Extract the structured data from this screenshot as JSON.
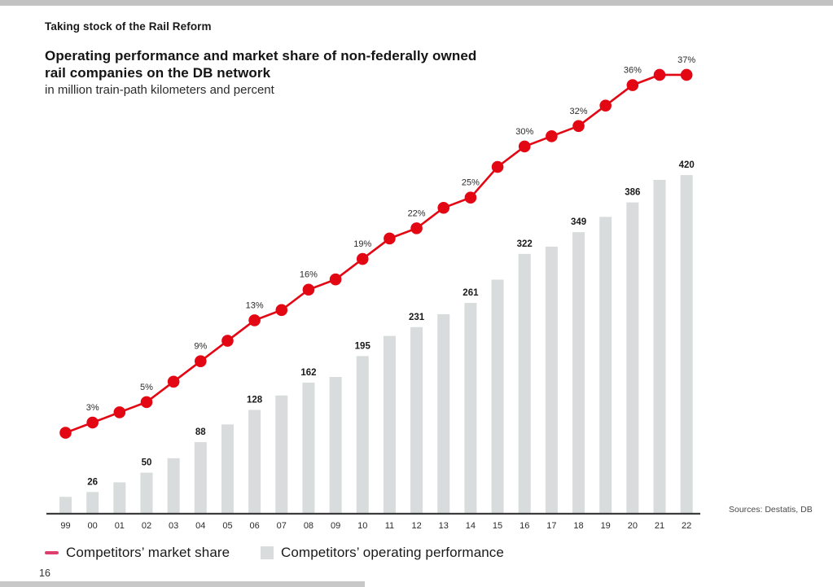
{
  "page": {
    "kicker": "Taking stock of the Rail Reform",
    "title_line1": "Operating performance and market share of non-federally owned",
    "title_line2": "rail companies on the DB network",
    "subtitle": "in million train-path kilometers and percent",
    "sources": "Sources: Destatis, DB",
    "page_number": "16"
  },
  "legend": {
    "market_share": "Competitors’ market share",
    "operating_performance": "Competitors’ operating performance"
  },
  "colors": {
    "line_red": "#e30613",
    "legend_dash_red": "#de3e6e",
    "bar_gray": "#d8dcdc",
    "axis_dark": "#3c3c3c",
    "label_dark": "#1a1a1a",
    "tick_text": "#2b2b2b"
  },
  "chart_data": {
    "type": "bar",
    "title": "Operating performance and market share of non-federally owned rail companies on the DB network",
    "subtitle": "in million train-path kilometers and percent",
    "xlabel": "",
    "ylabel": "",
    "grid": false,
    "legend_position": "bottom",
    "categories": [
      "99",
      "00",
      "01",
      "02",
      "03",
      "04",
      "05",
      "06",
      "07",
      "08",
      "09",
      "10",
      "11",
      "12",
      "13",
      "14",
      "15",
      "16",
      "17",
      "18",
      "19",
      "20",
      "21",
      "22"
    ],
    "series": [
      {
        "name": "Competitors’ operating performance",
        "type": "bar",
        "unit": "million train-path kilometers",
        "ylim": [
          0,
          440
        ],
        "values": [
          20,
          26,
          38,
          50,
          68,
          88,
          110,
          128,
          146,
          162,
          169,
          195,
          220,
          231,
          247,
          261,
          290,
          322,
          331,
          349,
          368,
          386,
          414,
          420
        ],
        "labels": [
          null,
          "26",
          null,
          "50",
          null,
          "88",
          null,
          "128",
          null,
          "162",
          null,
          "195",
          null,
          "231",
          null,
          "261",
          null,
          "322",
          null,
          "349",
          null,
          "386",
          null,
          "420"
        ]
      },
      {
        "name": "Competitors’ market share",
        "type": "line",
        "unit": "percent",
        "ylim": [
          0,
          40
        ],
        "values": [
          2,
          3,
          4,
          5,
          7,
          9,
          11,
          13,
          14,
          16,
          17,
          19,
          21,
          22,
          24,
          25,
          28,
          30,
          31,
          32,
          34,
          36,
          37,
          37
        ],
        "labels": [
          null,
          "3%",
          null,
          "5%",
          null,
          "9%",
          null,
          "13%",
          null,
          "16%",
          null,
          "19%",
          null,
          "22%",
          null,
          "25%",
          null,
          "30%",
          null,
          "32%",
          null,
          "36%",
          null,
          "37%"
        ]
      }
    ]
  }
}
